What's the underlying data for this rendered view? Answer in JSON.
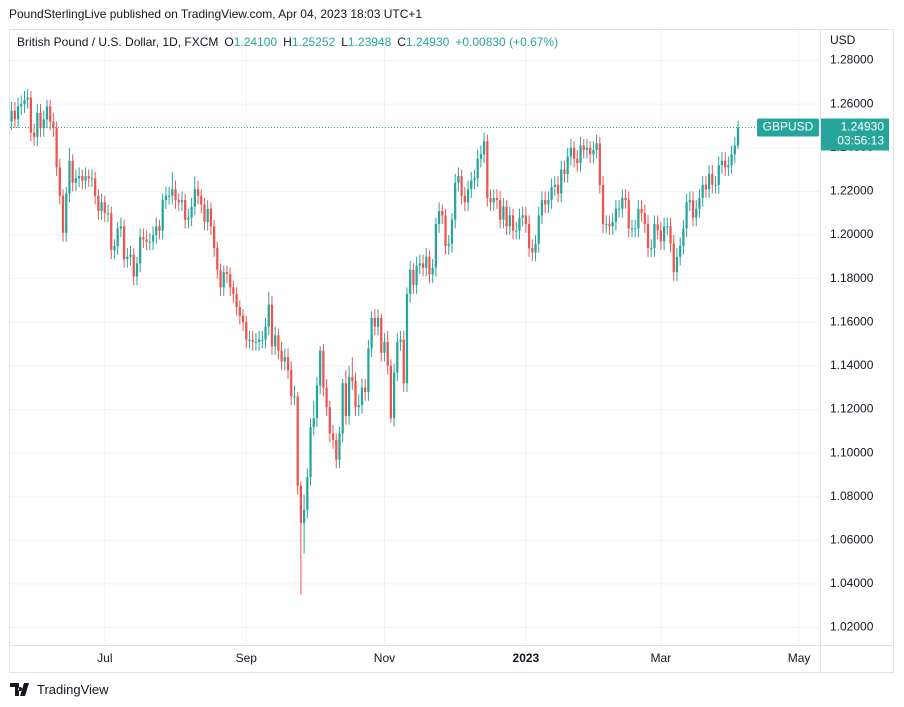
{
  "header": {
    "published": "PoundSterlingLive published on TradingView.com, Apr 04, 2023 18:03 UTC+1"
  },
  "legend": {
    "symbol": "British Pound / U.S. Dollar, 1D, FXCM",
    "items": [
      {
        "label": "O",
        "value": "1.24100"
      },
      {
        "label": "H",
        "value": "1.25252"
      },
      {
        "label": "L",
        "value": "1.23948"
      },
      {
        "label": "C",
        "value": "1.24930"
      }
    ],
    "change": "+0.00830 (+0.67%)"
  },
  "chart_data": {
    "type": "candlestick",
    "currency": "USD",
    "categories": [
      null,
      null,
      null,
      null,
      null,
      null,
      null,
      null,
      null,
      null,
      null,
      null,
      null,
      null,
      null,
      null,
      null,
      null,
      null,
      null,
      null,
      null,
      null,
      null,
      null,
      null,
      null,
      null,
      null,
      "Jul",
      null,
      null,
      null,
      null,
      null,
      null,
      null,
      null,
      null,
      null,
      null,
      null,
      null,
      null,
      null,
      null,
      null,
      null,
      null,
      null,
      null,
      null,
      null,
      null,
      null,
      null,
      null,
      null,
      null,
      null,
      null,
      null,
      null,
      null,
      null,
      null,
      null,
      null,
      null,
      null,
      null,
      null,
      null,
      "Sep",
      null,
      null,
      null,
      null,
      null,
      null,
      null,
      null,
      null,
      null,
      null,
      null,
      null,
      null,
      null,
      null,
      null,
      null,
      null,
      null,
      null,
      null,
      null,
      null,
      null,
      null,
      null,
      null,
      null,
      null,
      null,
      null,
      null,
      null,
      null,
      null,
      null,
      null,
      null,
      null,
      null,
      null,
      "Nov",
      null,
      null,
      null,
      null,
      null,
      null,
      null,
      null,
      null,
      null,
      null,
      null,
      null,
      null,
      null,
      null,
      null,
      null,
      null,
      null,
      null,
      null,
      null,
      null,
      null,
      null,
      null,
      null,
      null,
      null,
      null,
      null,
      null,
      null,
      null,
      null,
      null,
      null,
      null,
      null,
      null,
      null,
      null,
      "2023",
      null,
      null,
      null,
      null,
      null,
      null,
      null,
      null,
      null,
      null,
      null,
      null,
      null,
      null,
      null,
      null,
      null,
      null,
      null,
      null,
      null,
      null,
      null,
      null,
      null,
      null,
      null,
      null,
      null,
      null,
      null,
      null,
      null,
      null,
      null,
      null,
      null,
      null,
      null,
      null,
      null,
      "Mar",
      null,
      null,
      null,
      null,
      null,
      null,
      null,
      null,
      null,
      null,
      null,
      null,
      null,
      null,
      null,
      null,
      null,
      null,
      null,
      null,
      null,
      null,
      null,
      null,
      null,
      null,
      null,
      null,
      null,
      null,
      null,
      null,
      null,
      null,
      null,
      null,
      null,
      null,
      null,
      null,
      null,
      null,
      "May",
      null,
      null,
      null,
      null,
      null,
      null
    ],
    "open": [
      1.252,
      1.257,
      1.253,
      1.259,
      1.26,
      1.262,
      1.263,
      1.247,
      1.245,
      1.256,
      1.249,
      1.253,
      1.259,
      1.252,
      1.249,
      1.231,
      1.218,
      1.201,
      1.219,
      1.234,
      1.224,
      1.226,
      1.227,
      1.225,
      1.227,
      1.226,
      1.226,
      1.218,
      1.211,
      1.215,
      1.21,
      1.21,
      1.193,
      1.195,
      1.203,
      1.204,
      1.189,
      1.19,
      1.191,
      1.181,
      1.187,
      1.199,
      1.198,
      1.197,
      1.197,
      1.2,
      1.204,
      1.202,
      1.216,
      1.218,
      1.218,
      1.221,
      1.216,
      1.215,
      1.216,
      1.207,
      1.208,
      1.213,
      1.221,
      1.218,
      1.214,
      1.206,
      1.212,
      1.204,
      1.194,
      1.184,
      1.176,
      1.183,
      1.182,
      1.176,
      1.173,
      1.167,
      1.163,
      1.16,
      1.152,
      1.152,
      1.151,
      1.151,
      1.152,
      1.152,
      1.158,
      1.168,
      1.149,
      1.154,
      1.147,
      1.142,
      1.144,
      1.138,
      1.126,
      1.126,
      1.085,
      1.068,
      1.074,
      1.089,
      1.112,
      1.116,
      1.131,
      1.147,
      1.13,
      1.121,
      1.109,
      1.106,
      1.097,
      1.109,
      1.132,
      1.117,
      1.135,
      1.133,
      1.121,
      1.122,
      1.13,
      1.128,
      1.148,
      1.162,
      1.158,
      1.162,
      1.146,
      1.151,
      1.14,
      1.116,
      1.137,
      1.151,
      1.152,
      1.132,
      1.173,
      1.184,
      1.177,
      1.186,
      1.187,
      1.185,
      1.19,
      1.182,
      1.185,
      1.205,
      1.211,
      1.209,
      1.195,
      1.196,
      1.207,
      1.224,
      1.227,
      1.218,
      1.215,
      1.221,
      1.225,
      1.226,
      1.235,
      1.237,
      1.243,
      1.217,
      1.215,
      1.217,
      1.216,
      1.207,
      1.213,
      1.204,
      1.209,
      1.202,
      1.202,
      1.208,
      1.209,
      1.205,
      1.194,
      1.192,
      1.196,
      1.209,
      1.216,
      1.214,
      1.216,
      1.222,
      1.223,
      1.219,
      1.23,
      1.228,
      1.236,
      1.24,
      1.235,
      1.233,
      1.241,
      1.239,
      1.24,
      1.237,
      1.239,
      1.242,
      1.223,
      1.205,
      1.205,
      1.204,
      1.206,
      1.212,
      1.212,
      1.217,
      1.216,
      1.203,
      1.203,
      1.203,
      1.212,
      1.21,
      1.205,
      1.194,
      1.194,
      1.205,
      1.202,
      1.197,
      1.204,
      1.204,
      1.196,
      1.183,
      1.19,
      1.195,
      1.203,
      1.215,
      1.216,
      1.208,
      1.212,
      1.217,
      1.223,
      1.221,
      1.228,
      1.223,
      1.223,
      1.232,
      1.234,
      1.231,
      1.232,
      1.237,
      1.241,
      null,
      null,
      null,
      null,
      null,
      null,
      null,
      null,
      null,
      null,
      null,
      null,
      null,
      null,
      null,
      null,
      null,
      null,
      null,
      null,
      null,
      null,
      null,
      null,
      null
    ],
    "high": [
      1.261,
      1.261,
      1.263,
      1.264,
      1.266,
      1.267,
      1.266,
      1.251,
      1.26,
      1.26,
      1.257,
      1.262,
      1.262,
      1.256,
      1.252,
      1.235,
      1.221,
      1.222,
      1.24,
      1.237,
      1.23,
      1.231,
      1.23,
      1.231,
      1.23,
      1.23,
      1.229,
      1.221,
      1.219,
      1.218,
      1.214,
      1.213,
      1.198,
      1.206,
      1.208,
      1.207,
      1.194,
      1.195,
      1.194,
      1.19,
      1.203,
      1.203,
      1.202,
      1.201,
      1.204,
      1.208,
      1.207,
      1.219,
      1.222,
      1.222,
      1.229,
      1.225,
      1.219,
      1.22,
      1.219,
      1.212,
      1.217,
      1.227,
      1.225,
      1.221,
      1.217,
      1.216,
      1.215,
      1.207,
      1.197,
      1.187,
      1.186,
      1.186,
      1.185,
      1.179,
      1.176,
      1.17,
      1.166,
      1.163,
      1.156,
      1.156,
      1.155,
      1.156,
      1.156,
      1.162,
      1.174,
      1.172,
      1.158,
      1.157,
      1.151,
      1.148,
      1.148,
      1.142,
      1.131,
      1.128,
      1.087,
      1.081,
      1.093,
      1.116,
      1.124,
      1.135,
      1.149,
      1.15,
      1.134,
      1.124,
      1.113,
      1.109,
      1.112,
      1.134,
      1.138,
      1.14,
      1.144,
      1.137,
      1.127,
      1.134,
      1.134,
      1.152,
      1.165,
      1.166,
      1.166,
      1.164,
      1.155,
      1.156,
      1.143,
      1.141,
      1.155,
      1.156,
      1.156,
      1.176,
      1.188,
      1.187,
      1.19,
      1.191,
      1.191,
      1.194,
      1.193,
      1.189,
      1.208,
      1.215,
      1.214,
      1.212,
      1.2,
      1.21,
      1.228,
      1.231,
      1.23,
      1.222,
      1.225,
      1.229,
      1.23,
      1.239,
      1.241,
      1.247,
      1.246,
      1.221,
      1.221,
      1.221,
      1.22,
      1.217,
      1.216,
      1.213,
      1.212,
      1.206,
      1.212,
      1.213,
      1.213,
      1.209,
      1.198,
      1.2,
      1.213,
      1.22,
      1.22,
      1.22,
      1.226,
      1.227,
      1.227,
      1.234,
      1.234,
      1.24,
      1.244,
      1.243,
      1.239,
      1.245,
      1.244,
      1.244,
      1.243,
      1.243,
      1.246,
      1.245,
      1.227,
      1.209,
      1.209,
      1.21,
      1.216,
      1.216,
      1.221,
      1.221,
      1.22,
      1.207,
      1.207,
      1.216,
      1.216,
      1.214,
      1.209,
      1.198,
      1.209,
      1.209,
      1.206,
      1.208,
      1.208,
      1.208,
      1.2,
      1.194,
      1.199,
      1.207,
      1.219,
      1.22,
      1.22,
      1.216,
      1.221,
      1.227,
      1.227,
      1.232,
      1.232,
      1.227,
      1.236,
      1.238,
      1.238,
      1.236,
      1.241,
      1.245,
      1.25252,
      null,
      null,
      null,
      null,
      null,
      null,
      null,
      null,
      null,
      null,
      null,
      null,
      null,
      null,
      null,
      null,
      null,
      null,
      null,
      null,
      null,
      null,
      null,
      null,
      null
    ],
    "low": [
      1.248,
      1.249,
      1.249,
      1.255,
      1.256,
      1.258,
      1.243,
      1.241,
      1.241,
      1.245,
      1.245,
      1.249,
      1.248,
      1.245,
      1.227,
      1.214,
      1.197,
      1.197,
      1.215,
      1.22,
      1.22,
      1.222,
      1.221,
      1.221,
      1.222,
      1.222,
      1.214,
      1.207,
      1.207,
      1.206,
      1.206,
      1.189,
      1.189,
      1.191,
      1.199,
      1.185,
      1.185,
      1.186,
      1.177,
      1.177,
      1.183,
      1.194,
      1.193,
      1.193,
      1.193,
      1.196,
      1.198,
      1.198,
      1.212,
      1.214,
      1.214,
      1.212,
      1.211,
      1.211,
      1.203,
      1.203,
      1.204,
      1.209,
      1.214,
      1.21,
      1.202,
      1.202,
      1.2,
      1.19,
      1.18,
      1.172,
      1.172,
      1.178,
      1.172,
      1.169,
      1.163,
      1.159,
      1.156,
      1.148,
      1.148,
      1.147,
      1.147,
      1.147,
      1.148,
      1.148,
      1.154,
      1.145,
      1.145,
      1.143,
      1.138,
      1.138,
      1.134,
      1.122,
      1.122,
      1.081,
      1.035,
      1.054,
      1.07,
      1.085,
      1.108,
      1.112,
      1.127,
      1.126,
      1.117,
      1.105,
      1.102,
      1.093,
      1.093,
      1.105,
      1.113,
      1.113,
      1.129,
      1.117,
      1.117,
      1.118,
      1.124,
      1.124,
      1.144,
      1.154,
      1.154,
      1.142,
      1.142,
      1.136,
      1.114,
      1.112,
      1.133,
      1.147,
      1.128,
      1.128,
      1.169,
      1.173,
      1.173,
      1.182,
      1.181,
      1.181,
      1.178,
      1.178,
      1.181,
      1.201,
      1.205,
      1.191,
      1.191,
      1.192,
      1.203,
      1.22,
      1.214,
      1.211,
      1.211,
      1.217,
      1.221,
      1.222,
      1.231,
      1.233,
      1.213,
      1.211,
      1.211,
      1.212,
      1.203,
      1.203,
      1.2,
      1.2,
      1.198,
      1.198,
      1.198,
      1.204,
      1.201,
      1.19,
      1.188,
      1.188,
      1.192,
      1.205,
      1.21,
      1.21,
      1.212,
      1.218,
      1.215,
      1.215,
      1.224,
      1.224,
      1.232,
      1.231,
      1.229,
      1.229,
      1.235,
      1.235,
      1.233,
      1.233,
      1.235,
      1.219,
      1.201,
      1.201,
      1.2,
      1.2,
      1.202,
      1.208,
      1.208,
      1.212,
      1.199,
      1.199,
      1.199,
      1.199,
      1.206,
      1.201,
      1.19,
      1.19,
      1.19,
      1.198,
      1.193,
      1.193,
      1.2,
      1.192,
      1.179,
      1.179,
      1.186,
      1.191,
      1.199,
      1.211,
      1.204,
      1.204,
      1.208,
      1.213,
      1.217,
      1.217,
      1.219,
      1.219,
      1.219,
      1.228,
      1.227,
      1.227,
      1.228,
      1.233,
      1.23948,
      null,
      null,
      null,
      null,
      null,
      null,
      null,
      null,
      null,
      null,
      null,
      null,
      null,
      null,
      null,
      null,
      null,
      null,
      null,
      null,
      null,
      null,
      null,
      null,
      null
    ],
    "close": [
      1.257,
      1.253,
      1.259,
      1.26,
      1.262,
      1.263,
      1.247,
      1.245,
      1.256,
      1.249,
      1.253,
      1.259,
      1.252,
      1.249,
      1.231,
      1.218,
      1.201,
      1.219,
      1.234,
      1.224,
      1.226,
      1.227,
      1.225,
      1.227,
      1.226,
      1.226,
      1.218,
      1.211,
      1.215,
      1.21,
      1.21,
      1.193,
      1.195,
      1.203,
      1.204,
      1.189,
      1.19,
      1.191,
      1.181,
      1.187,
      1.199,
      1.198,
      1.197,
      1.197,
      1.2,
      1.204,
      1.202,
      1.216,
      1.218,
      1.218,
      1.221,
      1.216,
      1.215,
      1.216,
      1.207,
      1.208,
      1.213,
      1.221,
      1.218,
      1.214,
      1.206,
      1.212,
      1.204,
      1.194,
      1.184,
      1.176,
      1.183,
      1.182,
      1.176,
      1.173,
      1.167,
      1.163,
      1.16,
      1.152,
      1.152,
      1.151,
      1.151,
      1.152,
      1.152,
      1.158,
      1.168,
      1.149,
      1.154,
      1.147,
      1.142,
      1.144,
      1.138,
      1.126,
      1.126,
      1.085,
      1.068,
      1.074,
      1.089,
      1.112,
      1.116,
      1.131,
      1.147,
      1.13,
      1.121,
      1.109,
      1.106,
      1.097,
      1.109,
      1.132,
      1.117,
      1.135,
      1.133,
      1.121,
      1.122,
      1.13,
      1.128,
      1.148,
      1.162,
      1.158,
      1.162,
      1.146,
      1.151,
      1.14,
      1.116,
      1.137,
      1.151,
      1.152,
      1.132,
      1.173,
      1.184,
      1.177,
      1.186,
      1.187,
      1.185,
      1.19,
      1.182,
      1.185,
      1.205,
      1.211,
      1.209,
      1.195,
      1.196,
      1.207,
      1.224,
      1.227,
      1.218,
      1.215,
      1.221,
      1.225,
      1.226,
      1.235,
      1.237,
      1.243,
      1.217,
      1.215,
      1.217,
      1.216,
      1.207,
      1.213,
      1.204,
      1.209,
      1.202,
      1.202,
      1.208,
      1.209,
      1.205,
      1.194,
      1.192,
      1.196,
      1.209,
      1.216,
      1.214,
      1.216,
      1.222,
      1.223,
      1.219,
      1.23,
      1.228,
      1.236,
      1.24,
      1.235,
      1.233,
      1.241,
      1.239,
      1.24,
      1.237,
      1.239,
      1.242,
      1.223,
      1.205,
      1.205,
      1.204,
      1.206,
      1.212,
      1.212,
      1.217,
      1.216,
      1.203,
      1.203,
      1.203,
      1.212,
      1.21,
      1.205,
      1.194,
      1.194,
      1.205,
      1.202,
      1.197,
      1.204,
      1.204,
      1.196,
      1.183,
      1.19,
      1.195,
      1.203,
      1.215,
      1.216,
      1.208,
      1.212,
      1.217,
      1.223,
      1.221,
      1.228,
      1.223,
      1.223,
      1.232,
      1.234,
      1.231,
      1.232,
      1.237,
      1.241,
      1.2493,
      null,
      null,
      null,
      null,
      null,
      null,
      null,
      null,
      null,
      null,
      null,
      null,
      null,
      null,
      null,
      null,
      null,
      null,
      null,
      null,
      null,
      null,
      null,
      null,
      null
    ],
    "up_color": "#26a69a",
    "down_color": "#ef5350",
    "ylim": [
      1.012,
      1.294
    ],
    "yticks": [
      {
        "value": 1.02,
        "label": "1.02000"
      },
      {
        "value": 1.04,
        "label": "1.04000"
      },
      {
        "value": 1.06,
        "label": "1.06000"
      },
      {
        "value": 1.08,
        "label": "1.08000"
      },
      {
        "value": 1.1,
        "label": "1.10000"
      },
      {
        "value": 1.12,
        "label": "1.12000"
      },
      {
        "value": 1.14,
        "label": "1.14000"
      },
      {
        "value": 1.16,
        "label": "1.16000"
      },
      {
        "value": 1.18,
        "label": "1.18000"
      },
      {
        "value": 1.2,
        "label": "1.20000"
      },
      {
        "value": 1.22,
        "label": "1.22000"
      },
      {
        "value": 1.24,
        "label": "1.24000"
      },
      {
        "value": 1.26,
        "label": "1.26000"
      },
      {
        "value": 1.28,
        "label": "1.28000"
      }
    ],
    "grid": true,
    "last_price": {
      "symbol": "GBPUSD",
      "label": "1.24930",
      "countdown": "03:56:13"
    }
  },
  "footer": {
    "brand": "TradingView"
  }
}
